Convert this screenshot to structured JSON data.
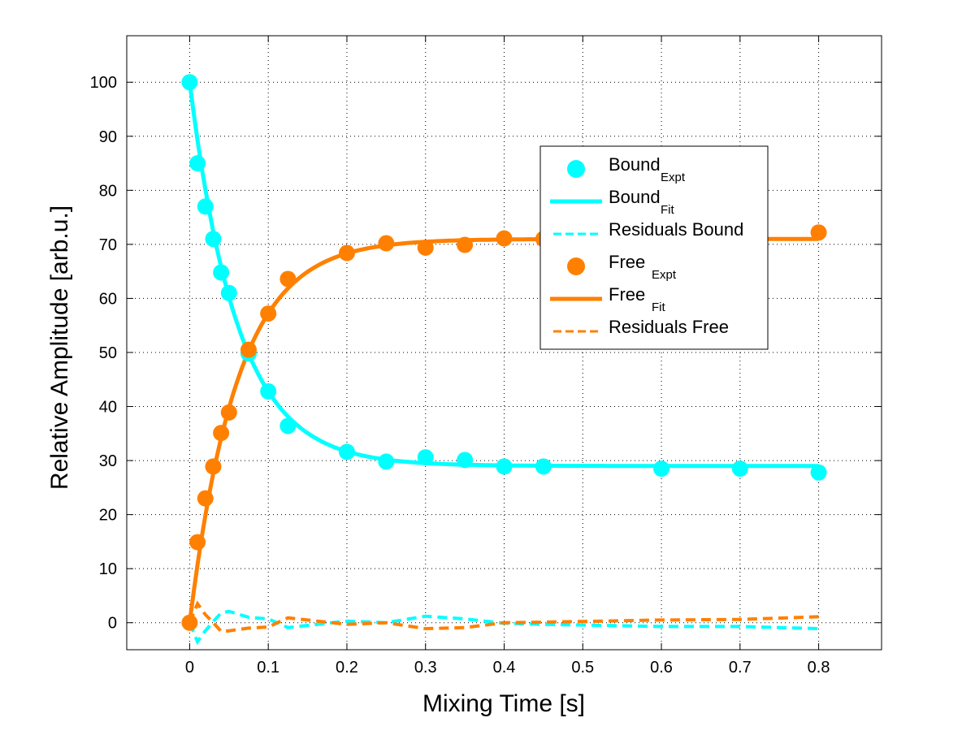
{
  "chart_data": {
    "type": "scatter",
    "title": "",
    "xlabel": "Mixing Time [s]",
    "ylabel": "Relative Amplitude [arb.u.]",
    "xlim": [
      -0.08,
      0.88
    ],
    "ylim": [
      -5,
      108.6
    ],
    "xticks": [
      0,
      0.1,
      0.2,
      0.3,
      0.4,
      0.5,
      0.6,
      0.7,
      0.8
    ],
    "xtick_labels": [
      "0",
      "0.1",
      "0.2",
      "0.3",
      "0.4",
      "0.5",
      "0.6",
      "0.7",
      "0.8"
    ],
    "yticks": [
      0,
      10,
      20,
      30,
      40,
      50,
      60,
      70,
      80,
      90,
      100
    ],
    "ytick_labels": [
      "0",
      "10",
      "20",
      "30",
      "40",
      "50",
      "60",
      "70",
      "80",
      "90",
      "100"
    ],
    "grid": true,
    "legend_position": "upper-right",
    "colors": {
      "bound": "#00ffff",
      "free": "#ff8000"
    },
    "x": [
      0,
      0.01,
      0.02,
      0.03,
      0.04,
      0.05,
      0.075,
      0.1,
      0.125,
      0.2,
      0.25,
      0.3,
      0.35,
      0.4,
      0.45,
      0.6,
      0.7,
      0.8
    ],
    "series": [
      {
        "name": "Bound",
        "sub": "Expt",
        "kind": "markers",
        "color": "bound",
        "values": [
          100,
          85,
          77,
          71,
          64.8,
          61,
          49.8,
          42.8,
          36.4,
          31.6,
          29.8,
          30.6,
          30.1,
          28.9,
          28.9,
          28.5,
          28.5,
          27.8
        ]
      },
      {
        "name": "Bound",
        "sub": "Fit",
        "kind": "fit",
        "color": "bound",
        "model": {
          "offset": 29,
          "amplitude": 71,
          "tau": 0.061,
          "form": "offset + amplitude*exp(-t/tau)"
        }
      },
      {
        "name": "Residuals Bound",
        "sub": "",
        "kind": "dashed",
        "color": "bound",
        "values": [
          0,
          -3.5,
          -1.5,
          0.2,
          1.8,
          2.1,
          1,
          0.7,
          -0.9,
          0.3,
          0,
          1.2,
          0.7,
          -0.1,
          -0.3,
          -0.7,
          -0.7,
          -1.1
        ]
      },
      {
        "name": "Free",
        "sub": "Expt",
        "kind": "markers",
        "color": "free",
        "values": [
          0,
          14.9,
          23,
          28.9,
          35.1,
          38.9,
          50.5,
          57.2,
          63.6,
          68.4,
          70.2,
          69.4,
          69.9,
          71.1,
          71,
          71.1,
          71.2,
          72.2
        ]
      },
      {
        "name": "Free",
        "sub": "Fit",
        "kind": "fit",
        "color": "free",
        "model": {
          "offset": 0,
          "amplitude": 71,
          "tau": 0.061,
          "form": "amplitude*(1-exp(-t/tau))"
        }
      },
      {
        "name": "Residuals Free",
        "sub": "",
        "kind": "dashed",
        "color": "free",
        "values": [
          0,
          3.5,
          1.5,
          0,
          -1.6,
          -1.5,
          -1,
          -0.8,
          0.9,
          -0.3,
          0,
          -1.1,
          -0.9,
          0,
          0.1,
          0.5,
          0.6,
          1.1
        ]
      }
    ]
  }
}
